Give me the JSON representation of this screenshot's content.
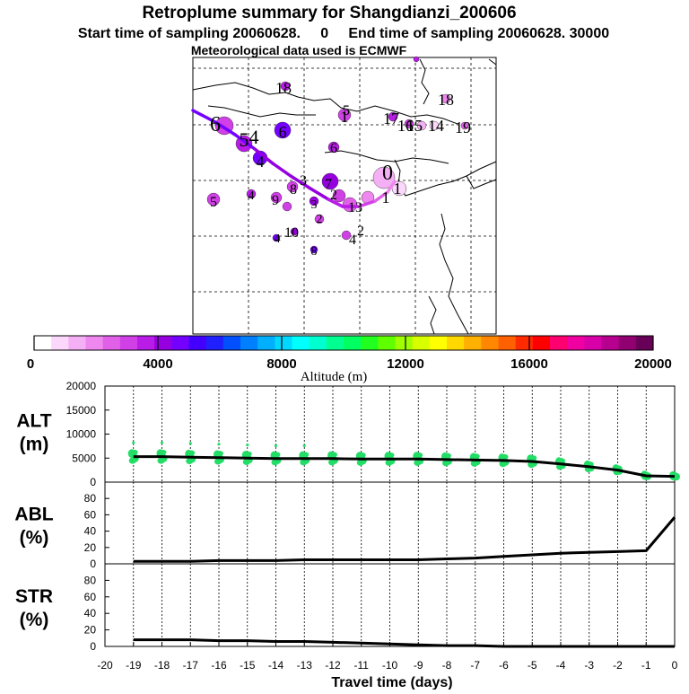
{
  "header": {
    "title": "Retroplume summary for Shangdianzi_200606",
    "line2": "Start time of sampling 20060628.     0     End time of sampling 20060628. 30000",
    "line3": "Meteorological data used is ECMWF"
  },
  "chart_data": [
    {
      "type": "scatter",
      "name": "retroplume-map",
      "description_of_marks": "cluster centroids labelled by day, colored by altitude",
      "trajectory_label": "mean retroplume path",
      "clusters": [
        {
          "label": "0",
          "day": 0,
          "alt": 1200
        },
        {
          "label": "1",
          "day": -1,
          "alt": 1000
        },
        {
          "label": "1",
          "day": -1,
          "alt": 2000
        },
        {
          "label": "2",
          "day": -2,
          "alt": 2500
        },
        {
          "label": "3",
          "day": -3,
          "alt": 3200
        },
        {
          "label": "4",
          "day": -4,
          "alt": 4200
        },
        {
          "label": "5",
          "day": -5,
          "alt": 4600
        },
        {
          "label": "6",
          "day": -6,
          "alt": 4700
        },
        {
          "label": "6",
          "day": -6,
          "alt": 3600
        },
        {
          "label": "7",
          "day": -7,
          "alt": 3200
        },
        {
          "label": "8",
          "day": -8,
          "alt": 3000
        },
        {
          "label": "9",
          "day": -9,
          "alt": 3800
        },
        {
          "label": "10",
          "day": -10,
          "alt": 3200
        },
        {
          "label": "11",
          "day": -11,
          "alt": 3000
        },
        {
          "label": "12",
          "day": -12,
          "alt": 3100
        },
        {
          "label": "13",
          "day": -13,
          "alt": 3900
        },
        {
          "label": "14",
          "day": -14,
          "alt": 3300
        },
        {
          "label": "15",
          "day": -15,
          "alt": 3200
        },
        {
          "label": "16",
          "day": -16,
          "alt": 3400
        },
        {
          "label": "17",
          "day": -17,
          "alt": 3400
        },
        {
          "label": "18",
          "day": -18,
          "alt": 3800
        },
        {
          "label": "19",
          "day": -19,
          "alt": 3000
        }
      ],
      "label_texts": [
        "18",
        "18",
        "6",
        "5",
        "4",
        "6",
        "4",
        "17",
        "16",
        "15",
        "14",
        "19",
        "5",
        "4",
        "9",
        "8",
        "3",
        "7",
        "2",
        "3",
        "2",
        "1",
        "13",
        "6",
        "1",
        "0",
        "1",
        "10",
        "2",
        "8",
        "4",
        "4",
        "5"
      ]
    },
    {
      "type": "colorbar",
      "name": "altitude-colorbar",
      "xlabel": "Altitude (m)",
      "range": [
        0,
        20000
      ],
      "tick_labels": [
        "0",
        "4000",
        "8000",
        "12000",
        "16000",
        "20000"
      ],
      "colors": [
        "#ffffff",
        "#fbd7fb",
        "#f5b0f5",
        "#ee88ee",
        "#e060e8",
        "#d040e6",
        "#b81ce6",
        "#9600e0",
        "#7400ff",
        "#4400ff",
        "#2020ff",
        "#0050ff",
        "#0080ff",
        "#00b0ff",
        "#00d8ff",
        "#00ffff",
        "#00ffd0",
        "#00ff90",
        "#00ff60",
        "#20ff20",
        "#60ff00",
        "#a0ff00",
        "#d8ff00",
        "#ffff00",
        "#ffd800",
        "#ffb000",
        "#ff8800",
        "#ff6000",
        "#ff2a00",
        "#ff0000",
        "#ff0070",
        "#f000a0",
        "#d800a8",
        "#b80090",
        "#900070",
        "#680058"
      ]
    },
    {
      "type": "line",
      "name": "alt-panel",
      "ylabel": "ALT\n(m)",
      "ylim": [
        0,
        20000
      ],
      "yticks": [
        "20000",
        "15000",
        "10000",
        "5000",
        "0"
      ],
      "x": [
        -19,
        -18,
        -17,
        -16,
        -15,
        -14,
        -13,
        -12,
        -11,
        -10,
        -9,
        -8,
        -7,
        -6,
        -5,
        -4,
        -3,
        -2,
        -1,
        0
      ],
      "values": [
        5300,
        5300,
        5200,
        5100,
        5000,
        4900,
        4900,
        4900,
        4800,
        4800,
        4800,
        4700,
        4600,
        4500,
        4300,
        3800,
        3200,
        2500,
        1300,
        1200
      ],
      "spread_color": "#22dd66"
    },
    {
      "type": "line",
      "name": "abl-panel",
      "ylabel": "ABL\n(%)",
      "ylim": [
        0,
        100
      ],
      "yticks": [
        "80",
        "60",
        "40",
        "20",
        "0"
      ],
      "x": [
        -19,
        -18,
        -17,
        -16,
        -15,
        -14,
        -13,
        -12,
        -11,
        -10,
        -9,
        -8,
        -7,
        -6,
        -5,
        -4,
        -3,
        -2,
        -1,
        0
      ],
      "values": [
        3,
        3,
        3,
        4,
        4,
        4,
        5,
        5,
        5,
        5,
        5,
        6,
        7,
        9,
        11,
        13,
        14,
        15,
        16,
        57
      ]
    },
    {
      "type": "line",
      "name": "str-panel",
      "ylabel": "STR\n(%)",
      "ylim": [
        0,
        100
      ],
      "yticks": [
        "80",
        "60",
        "40",
        "20",
        "0"
      ],
      "x": [
        -19,
        -18,
        -17,
        -16,
        -15,
        -14,
        -13,
        -12,
        -11,
        -10,
        -9,
        -8,
        -7,
        -6,
        -5,
        -4,
        -3,
        -2,
        -1,
        0
      ],
      "values": [
        8,
        8,
        8,
        7,
        7,
        6,
        6,
        5,
        4,
        3,
        2,
        1,
        1,
        0,
        0,
        0,
        0,
        0,
        0,
        0
      ],
      "xlabel": "Travel time (days)",
      "xticks": [
        "-20",
        "-19",
        "-18",
        "-17",
        "-16",
        "-15",
        "-14",
        "-13",
        "-12",
        "-11",
        "-10",
        "-9",
        "-8",
        "-7",
        "-6",
        "-5",
        "-4",
        "-3",
        "-2",
        "-1",
        "0"
      ]
    }
  ]
}
